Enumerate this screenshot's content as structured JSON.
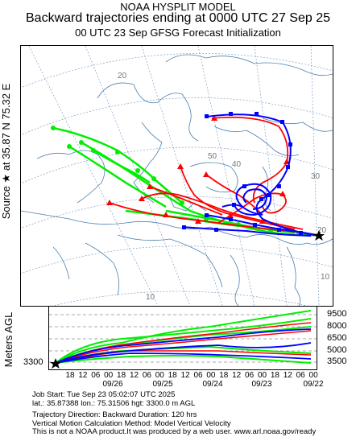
{
  "header": {
    "line1": "NOAA HYSPLIT MODEL",
    "line2": "Backward trajectories ending at 0000 UTC 27 Sep 25",
    "line3": "00 UTC 23 Sep    GFSG  Forecast Initialization"
  },
  "source_label": "Source ★ at   35.87 N   75.32 E",
  "map": {
    "graticule_labels": [
      "20",
      "50",
      "40",
      "30",
      "20",
      "10",
      "10"
    ],
    "source_marker": "star-icon"
  },
  "height_panel": {
    "ylabel": "Meters AGL",
    "start_height": "3300",
    "right_ticks": [
      "9500",
      "8000",
      "6500",
      "5000",
      "3500"
    ],
    "hour_ticks": [
      "18",
      "12",
      "06",
      "00",
      "18",
      "12",
      "06",
      "00",
      "18",
      "12",
      "06",
      "00",
      "18",
      "12",
      "06",
      "00",
      "18",
      "12",
      "06",
      "00"
    ],
    "date_ticks": [
      "09/26",
      "09/25",
      "09/24",
      "09/23",
      "09/22"
    ]
  },
  "info": {
    "job_start": "Job Start: Tue Sep 23 05:02:07 UTC 2025",
    "location": "lat.: 35.87388   lon.: 75.31506   hgt: 3300.0 m AGL",
    "direction": "Trajectory Direction: Backward       Duration: 120 hrs",
    "vertical": "Vertical Motion Calculation Method: Model Vertical Velocity",
    "disclaimer": "This is not a NOAA product.It was produced by a web user. www.arl.noaa.gov/ready"
  },
  "colors": {
    "red": "#ff0000",
    "blue": "#0000ff",
    "green": "#00ff00",
    "border": "#4a7fb0"
  }
}
